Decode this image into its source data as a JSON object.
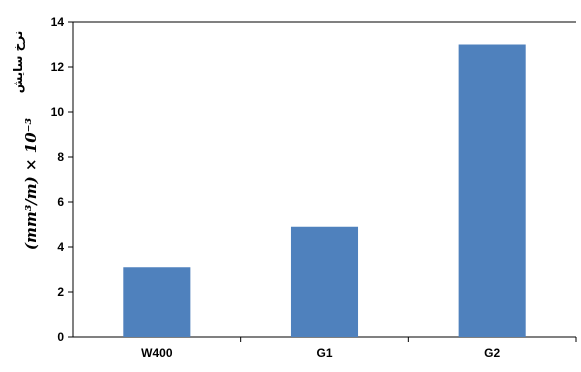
{
  "chart_data": {
    "type": "bar",
    "categories": [
      "W400",
      "G1",
      "G2"
    ],
    "values": [
      3.1,
      4.9,
      13.0
    ],
    "ylabel": "نرخ سایش",
    "ylabel_units": "(mm³/m) × 10⁻³",
    "ylim": [
      0,
      14
    ],
    "yticks": [
      "0",
      "2",
      "4",
      "6",
      "8",
      "10",
      "12",
      "14"
    ],
    "grid": false,
    "legend": "none",
    "bar_color": "#4F81BD",
    "axis_color": "#000000"
  }
}
